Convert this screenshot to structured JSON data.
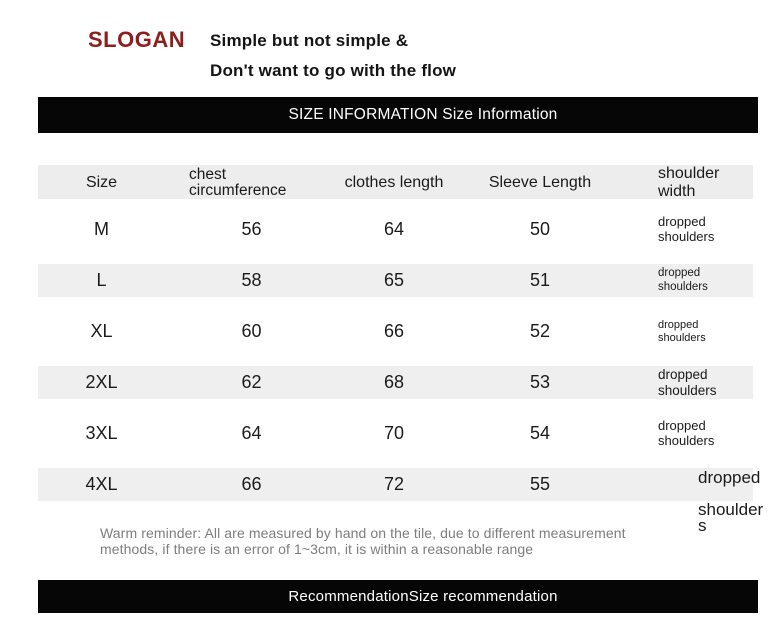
{
  "brand": {
    "logo": "SLOGAN",
    "tagline_line1": "Simple but not simple &",
    "tagline_line2": "Don't want to go with the flow"
  },
  "banners": {
    "size_information": "SIZE INFORMATION Size Information",
    "recommendation": "RecommendationSize recommendation"
  },
  "table": {
    "headers": {
      "size": "Size",
      "chest_line1": "chest",
      "chest_line2": "circumference",
      "clothes_length": "clothes length",
      "sleeve_length": "Sleeve Length",
      "shoulder_line1": "shoulder",
      "shoulder_line2": "width"
    },
    "rows": [
      {
        "size": "M",
        "chest": "56",
        "clothes_length": "64",
        "sleeve_length": "50",
        "shoulder_width_lines": [
          "dropped",
          "shoulders"
        ]
      },
      {
        "size": "L",
        "chest": "58",
        "clothes_length": "65",
        "sleeve_length": "51",
        "shoulder_width_lines": [
          "dropped",
          "shoulders"
        ]
      },
      {
        "size": "XL",
        "chest": "60",
        "clothes_length": "66",
        "sleeve_length": "52",
        "shoulder_width_lines": [
          "dropped",
          "shoulders"
        ]
      },
      {
        "size": "2XL",
        "chest": "62",
        "clothes_length": "68",
        "sleeve_length": "53",
        "shoulder_width_lines": [
          "dropped",
          "shoulders"
        ]
      },
      {
        "size": "3XL",
        "chest": "64",
        "clothes_length": "70",
        "sleeve_length": "54",
        "shoulder_width_lines": [
          "dropped",
          "shoulders"
        ]
      },
      {
        "size": "4XL",
        "chest": "66",
        "clothes_length": "72",
        "sleeve_length": "55",
        "shoulder_width_lines": [
          "dropped",
          "shoulder",
          "s"
        ]
      }
    ]
  },
  "note": {
    "line1": "Warm reminder: All are measured by hand on the tile, due to different measurement",
    "line2": "methods, if there is an error of 1~3cm, it is within a reasonable range"
  },
  "colors": {
    "accent_red": "#8e1e1c",
    "banner_bg": "#060606",
    "stripe_gray": "#efefef",
    "header_gray": "#ededed",
    "note_gray": "#7d7d7d"
  }
}
